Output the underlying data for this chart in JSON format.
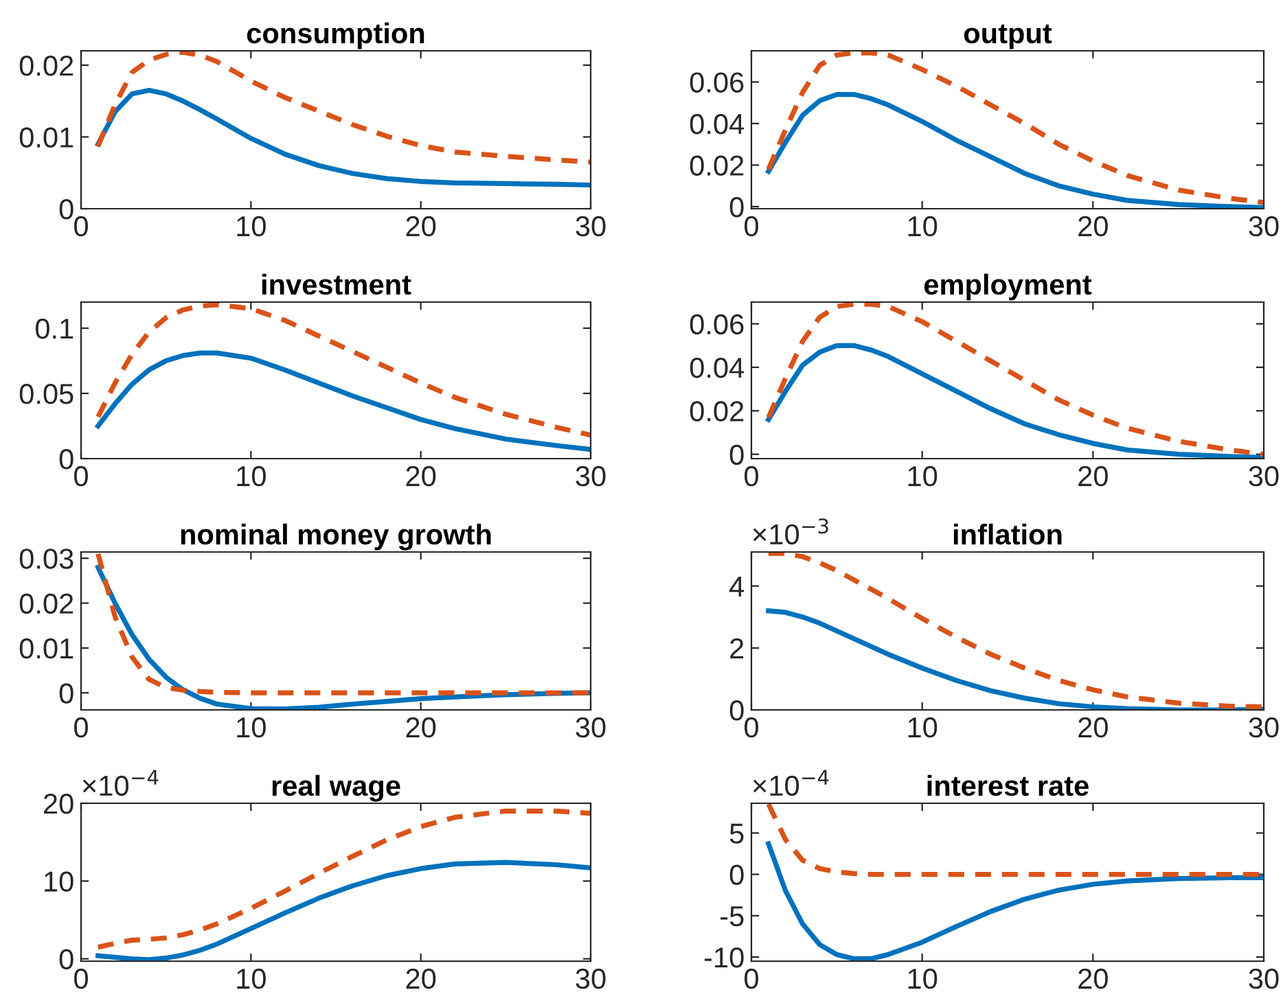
{
  "chart_data": [
    {
      "type": "line",
      "title": "consumption",
      "x": [
        1,
        2,
        3,
        4,
        5,
        6,
        7,
        8,
        10,
        12,
        14,
        16,
        18,
        20,
        22,
        25,
        28,
        30
      ],
      "xlim": [
        0,
        30
      ],
      "xticks": [
        0,
        10,
        20,
        30
      ],
      "ylim": [
        0,
        0.022
      ],
      "yticks": [
        0,
        0.01,
        0.02
      ],
      "series": [
        {
          "color": "#0072bd",
          "line_style": "solid",
          "values": [
            0.009,
            0.0135,
            0.016,
            0.0165,
            0.016,
            0.015,
            0.0138,
            0.0125,
            0.0098,
            0.0076,
            0.006,
            0.0049,
            0.0042,
            0.0038,
            0.0036,
            0.0035,
            0.0034,
            0.0033
          ]
        },
        {
          "color": "#d95319",
          "line_style": "dashed",
          "values": [
            0.0087,
            0.0145,
            0.019,
            0.0207,
            0.0215,
            0.0218,
            0.0214,
            0.0205,
            0.0178,
            0.0155,
            0.0136,
            0.0117,
            0.0101,
            0.0088,
            0.0079,
            0.0073,
            0.0068,
            0.0065
          ]
        }
      ]
    },
    {
      "type": "line",
      "title": "output",
      "x": [
        1,
        2,
        3,
        4,
        5,
        6,
        7,
        8,
        10,
        12,
        14,
        16,
        18,
        20,
        22,
        25,
        28,
        30
      ],
      "xlim": [
        0,
        30
      ],
      "xticks": [
        0,
        10,
        20,
        30
      ],
      "ylim": [
        -0.001,
        0.075
      ],
      "yticks": [
        0,
        0.02,
        0.04,
        0.06
      ],
      "series": [
        {
          "color": "#0072bd",
          "line_style": "solid",
          "values": [
            0.017,
            0.031,
            0.044,
            0.051,
            0.054,
            0.054,
            0.052,
            0.049,
            0.041,
            0.032,
            0.024,
            0.016,
            0.01,
            0.006,
            0.003,
            0.001,
            0.0,
            -0.0005
          ]
        },
        {
          "color": "#d95319",
          "line_style": "dashed",
          "values": [
            0.018,
            0.037,
            0.055,
            0.068,
            0.073,
            0.074,
            0.074,
            0.073,
            0.066,
            0.058,
            0.049,
            0.04,
            0.03,
            0.022,
            0.015,
            0.008,
            0.004,
            0.002
          ]
        }
      ]
    },
    {
      "type": "line",
      "title": "investment",
      "x": [
        1,
        2,
        3,
        4,
        5,
        6,
        7,
        8,
        10,
        12,
        14,
        16,
        18,
        20,
        22,
        25,
        28,
        30
      ],
      "xlim": [
        0,
        30
      ],
      "xticks": [
        0,
        10,
        20,
        30
      ],
      "ylim": [
        0,
        0.12
      ],
      "yticks": [
        0,
        0.05,
        0.1
      ],
      "series": [
        {
          "color": "#0072bd",
          "line_style": "solid",
          "values": [
            0.025,
            0.042,
            0.057,
            0.068,
            0.075,
            0.079,
            0.081,
            0.081,
            0.077,
            0.068,
            0.058,
            0.048,
            0.039,
            0.03,
            0.023,
            0.015,
            0.01,
            0.007
          ]
        },
        {
          "color": "#d95319",
          "line_style": "dashed",
          "values": [
            0.032,
            0.058,
            0.08,
            0.097,
            0.108,
            0.114,
            0.117,
            0.118,
            0.115,
            0.106,
            0.094,
            0.082,
            0.07,
            0.058,
            0.047,
            0.034,
            0.024,
            0.018
          ]
        }
      ]
    },
    {
      "type": "line",
      "title": "employment",
      "x": [
        1,
        2,
        3,
        4,
        5,
        6,
        7,
        8,
        10,
        12,
        14,
        16,
        18,
        20,
        22,
        25,
        28,
        30
      ],
      "xlim": [
        0,
        30
      ],
      "xticks": [
        0,
        10,
        20,
        30
      ],
      "ylim": [
        -0.002,
        0.07
      ],
      "yticks": [
        0,
        0.02,
        0.04,
        0.06
      ],
      "series": [
        {
          "color": "#0072bd",
          "line_style": "solid",
          "values": [
            0.016,
            0.029,
            0.041,
            0.047,
            0.05,
            0.05,
            0.048,
            0.045,
            0.037,
            0.029,
            0.021,
            0.014,
            0.009,
            0.005,
            0.002,
            0.0,
            -0.001,
            -0.0015
          ]
        },
        {
          "color": "#d95319",
          "line_style": "dashed",
          "values": [
            0.017,
            0.035,
            0.052,
            0.063,
            0.068,
            0.069,
            0.069,
            0.068,
            0.061,
            0.052,
            0.043,
            0.034,
            0.025,
            0.018,
            0.012,
            0.006,
            0.002,
            0.0
          ]
        }
      ]
    },
    {
      "type": "line",
      "title": "nominal money growth",
      "x": [
        1,
        2,
        3,
        4,
        5,
        6,
        7,
        8,
        10,
        12,
        14,
        16,
        18,
        20,
        22,
        25,
        28,
        30
      ],
      "xlim": [
        0,
        30
      ],
      "xticks": [
        0,
        10,
        20,
        30
      ],
      "ylim": [
        -0.0038,
        0.0314
      ],
      "yticks": [
        0,
        0.01,
        0.02,
        0.03
      ],
      "series": [
        {
          "color": "#0072bd",
          "line_style": "solid",
          "values": [
            0.028,
            0.02,
            0.013,
            0.0075,
            0.0035,
            0.0007,
            -0.0012,
            -0.0025,
            -0.0035,
            -0.0036,
            -0.0032,
            -0.0025,
            -0.0019,
            -0.0013,
            -0.0009,
            -0.0004,
            -0.0001,
            0.0
          ]
        },
        {
          "color": "#d95319",
          "line_style": "dashed",
          "values": [
            0.031,
            0.017,
            0.008,
            0.003,
            0.0012,
            0.0006,
            0.0003,
            0.0001,
            0.0,
            0.0,
            0.0,
            0.0,
            0.0,
            0.0,
            0.0,
            0.0,
            0.0,
            0.0
          ]
        }
      ]
    },
    {
      "type": "line",
      "title": "inflation",
      "annotations": [
        "×10$^{−3}$"
      ],
      "x": [
        1,
        2,
        3,
        4,
        5,
        6,
        7,
        8,
        10,
        12,
        14,
        16,
        18,
        20,
        22,
        25,
        28,
        30
      ],
      "xlim": [
        0,
        30
      ],
      "xticks": [
        0,
        10,
        20,
        30
      ],
      "ylim": [
        0,
        5.1
      ],
      "yticks": [
        0,
        2,
        4
      ],
      "series": [
        {
          "color": "#0072bd",
          "line_style": "solid",
          "values": [
            3.2,
            3.15,
            3.0,
            2.8,
            2.55,
            2.3,
            2.05,
            1.8,
            1.35,
            0.95,
            0.62,
            0.38,
            0.2,
            0.1,
            0.04,
            0.0,
            0.0,
            0.02
          ]
        },
        {
          "color": "#d95319",
          "line_style": "dashed",
          "values": [
            5.05,
            5.05,
            4.95,
            4.75,
            4.5,
            4.2,
            3.9,
            3.6,
            2.95,
            2.35,
            1.8,
            1.35,
            0.95,
            0.65,
            0.42,
            0.22,
            0.12,
            0.1
          ]
        }
      ]
    },
    {
      "type": "line",
      "title": "real wage",
      "annotations": [
        "×10$^{−4}$"
      ],
      "x": [
        1,
        2,
        3,
        4,
        5,
        6,
        7,
        8,
        10,
        12,
        14,
        16,
        18,
        20,
        22,
        25,
        28,
        30
      ],
      "xlim": [
        0,
        30
      ],
      "xticks": [
        0,
        10,
        20,
        30
      ],
      "ylim": [
        -0.3,
        20
      ],
      "yticks": [
        0,
        10,
        20
      ],
      "series": [
        {
          "color": "#0072bd",
          "line_style": "solid",
          "values": [
            0.4,
            0.2,
            0.0,
            -0.1,
            0.1,
            0.5,
            1.1,
            1.9,
            3.9,
            5.9,
            7.8,
            9.4,
            10.7,
            11.6,
            12.2,
            12.4,
            12.1,
            11.7
          ]
        },
        {
          "color": "#d95319",
          "line_style": "dashed",
          "values": [
            1.5,
            2.0,
            2.4,
            2.5,
            2.7,
            3.1,
            3.7,
            4.5,
            6.5,
            8.7,
            11.0,
            13.2,
            15.3,
            17.0,
            18.2,
            19.0,
            19.0,
            18.7
          ]
        }
      ]
    },
    {
      "type": "line",
      "title": "interest rate",
      "annotations": [
        "×10$^{−4}$"
      ],
      "x": [
        1,
        2,
        3,
        4,
        5,
        6,
        7,
        8,
        10,
        12,
        14,
        16,
        18,
        20,
        22,
        25,
        28,
        30
      ],
      "xlim": [
        0,
        30
      ],
      "xticks": [
        0,
        10,
        20,
        30
      ],
      "ylim": [
        -10.5,
        8.6
      ],
      "yticks": [
        -10,
        -5,
        0,
        5
      ],
      "series": [
        {
          "color": "#0072bd",
          "line_style": "solid",
          "values": [
            3.7,
            -2.0,
            -6.0,
            -8.5,
            -9.7,
            -10.2,
            -10.2,
            -9.7,
            -8.2,
            -6.3,
            -4.5,
            -3.0,
            -1.9,
            -1.2,
            -0.8,
            -0.5,
            -0.4,
            -0.4
          ]
        },
        {
          "color": "#d95319",
          "line_style": "dashed",
          "values": [
            8.5,
            4.2,
            1.7,
            0.7,
            0.3,
            0.1,
            0.0,
            0.0,
            0.0,
            0.0,
            0.0,
            0.0,
            0.0,
            0.0,
            0.0,
            0.0,
            0.0,
            0.0
          ]
        }
      ]
    }
  ]
}
